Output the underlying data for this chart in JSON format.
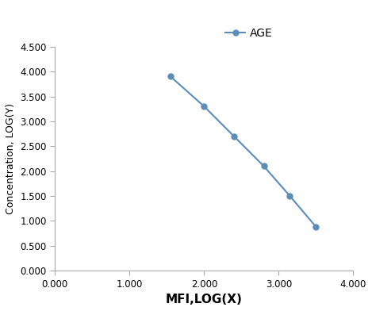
{
  "x": [
    1.55,
    2.0,
    2.4,
    2.8,
    3.15,
    3.5
  ],
  "y": [
    3.9,
    3.3,
    2.7,
    2.1,
    1.5,
    0.88
  ],
  "line_color": "#5b8db8",
  "marker": "o",
  "marker_size": 5,
  "legend_label": "AGE",
  "xlabel": "MFI,LOG(X)",
  "ylabel": "Concentration, LOG(Y)",
  "xlim": [
    0.0,
    4.0
  ],
  "ylim": [
    0.0,
    4.5
  ],
  "xticks": [
    0.0,
    1.0,
    2.0,
    3.0,
    4.0
  ],
  "yticks": [
    0.0,
    0.5,
    1.0,
    1.5,
    2.0,
    2.5,
    3.0,
    3.5,
    4.0,
    4.5
  ],
  "xtick_labels": [
    "0.000",
    "1.000",
    "2.000",
    "3.000",
    "4.000"
  ],
  "ytick_labels": [
    "0.000",
    "0.500",
    "1.000",
    "1.500",
    "2.000",
    "2.500",
    "3.000",
    "3.500",
    "4.000",
    "4.500"
  ],
  "xlabel_fontsize": 11,
  "ylabel_fontsize": 9,
  "tick_fontsize": 8.5,
  "legend_fontsize": 10,
  "background_color": "#ffffff"
}
